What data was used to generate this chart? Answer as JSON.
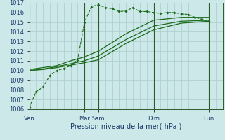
{
  "bg_color": "#cce8e8",
  "grid_color": "#b0d0d0",
  "line_color": "#1a6b1a",
  "xlabel": "Pression niveau de la mer( hPa )",
  "ylim": [
    1006,
    1017
  ],
  "yticks": [
    1006,
    1007,
    1008,
    1009,
    1010,
    1011,
    1012,
    1013,
    1014,
    1015,
    1016,
    1017
  ],
  "xlim": [
    0,
    168
  ],
  "xtick_labels": [
    "Ven",
    "Mar",
    "Sam",
    "Dim",
    "Lun"
  ],
  "xtick_positions": [
    0,
    48,
    60,
    108,
    156
  ],
  "vlines": [
    48,
    60,
    108,
    156
  ],
  "series": {
    "dotted": [
      [
        0,
        1006.2
      ],
      [
        6,
        1007.8
      ],
      [
        12,
        1008.3
      ],
      [
        18,
        1009.5
      ],
      [
        24,
        1010.0
      ],
      [
        30,
        1010.2
      ],
      [
        36,
        1010.5
      ],
      [
        42,
        1011.1
      ],
      [
        48,
        1015.0
      ],
      [
        54,
        1016.6
      ],
      [
        60,
        1016.8
      ],
      [
        66,
        1016.5
      ],
      [
        72,
        1016.4
      ],
      [
        78,
        1016.1
      ],
      [
        84,
        1016.15
      ],
      [
        90,
        1016.5
      ],
      [
        96,
        1016.1
      ],
      [
        102,
        1016.1
      ],
      [
        108,
        1016.0
      ],
      [
        114,
        1015.9
      ],
      [
        120,
        1016.0
      ],
      [
        126,
        1016.0
      ],
      [
        132,
        1015.85
      ],
      [
        138,
        1015.8
      ],
      [
        144,
        1015.5
      ],
      [
        150,
        1015.3
      ],
      [
        156,
        1015.1
      ]
    ],
    "solid1": [
      [
        0,
        1010.0
      ],
      [
        12,
        1010.1
      ],
      [
        24,
        1010.3
      ],
      [
        36,
        1010.55
      ],
      [
        48,
        1010.8
      ],
      [
        60,
        1011.1
      ],
      [
        84,
        1012.8
      ],
      [
        108,
        1014.2
      ],
      [
        132,
        1014.9
      ],
      [
        156,
        1015.1
      ]
    ],
    "solid2": [
      [
        0,
        1010.0
      ],
      [
        12,
        1010.15
      ],
      [
        24,
        1010.4
      ],
      [
        36,
        1010.7
      ],
      [
        48,
        1011.0
      ],
      [
        60,
        1011.5
      ],
      [
        84,
        1013.2
      ],
      [
        108,
        1014.6
      ],
      [
        132,
        1015.1
      ],
      [
        156,
        1015.2
      ]
    ],
    "solid3": [
      [
        0,
        1010.1
      ],
      [
        12,
        1010.3
      ],
      [
        24,
        1010.5
      ],
      [
        36,
        1011.0
      ],
      [
        48,
        1011.4
      ],
      [
        60,
        1012.0
      ],
      [
        84,
        1013.8
      ],
      [
        108,
        1015.2
      ],
      [
        132,
        1015.5
      ],
      [
        156,
        1015.5
      ]
    ]
  }
}
